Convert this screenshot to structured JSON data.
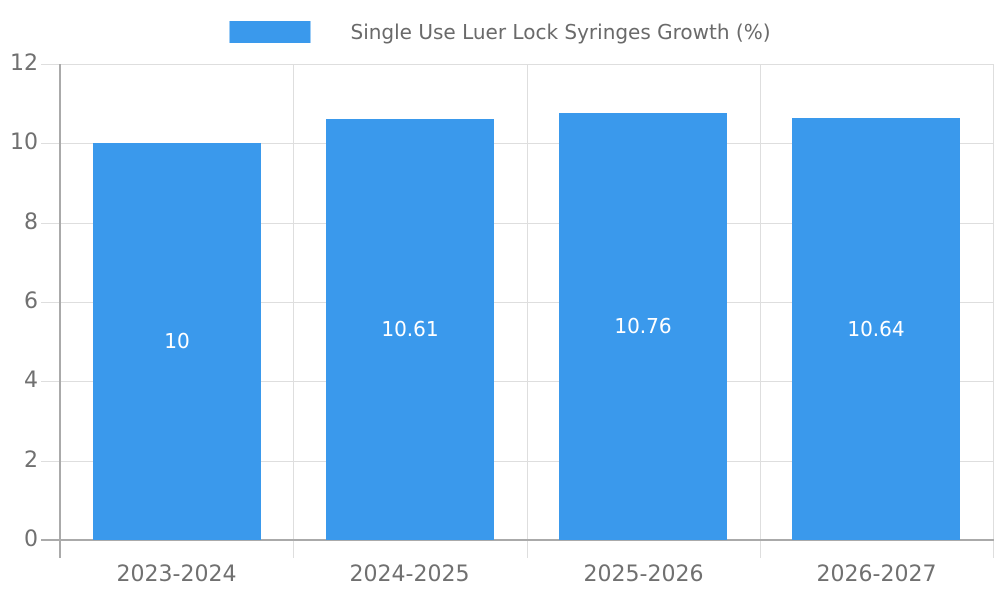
{
  "chart_data": {
    "type": "bar",
    "series_name": "Single Use Luer Lock Syringes Growth (%)",
    "categories": [
      "2023-2024",
      "2024-2025",
      "2025-2026",
      "2026-2027"
    ],
    "values": [
      10,
      10.61,
      10.76,
      10.64
    ],
    "value_labels": [
      "10",
      "10.61",
      "10.76",
      "10.64"
    ],
    "ylim": [
      0,
      12
    ],
    "yticks": [
      0,
      2,
      4,
      6,
      8,
      10,
      12
    ],
    "grid": true,
    "legend_position": "top-center",
    "colors": {
      "bar": "#3A99EC",
      "axis_line": "#AAAAAA",
      "gridline": "#DEDEDE",
      "axis_label": "#707070",
      "legend_text": "#6A6A6A",
      "value_label": "#FFFFFF",
      "background": "#FFFFFF"
    }
  }
}
